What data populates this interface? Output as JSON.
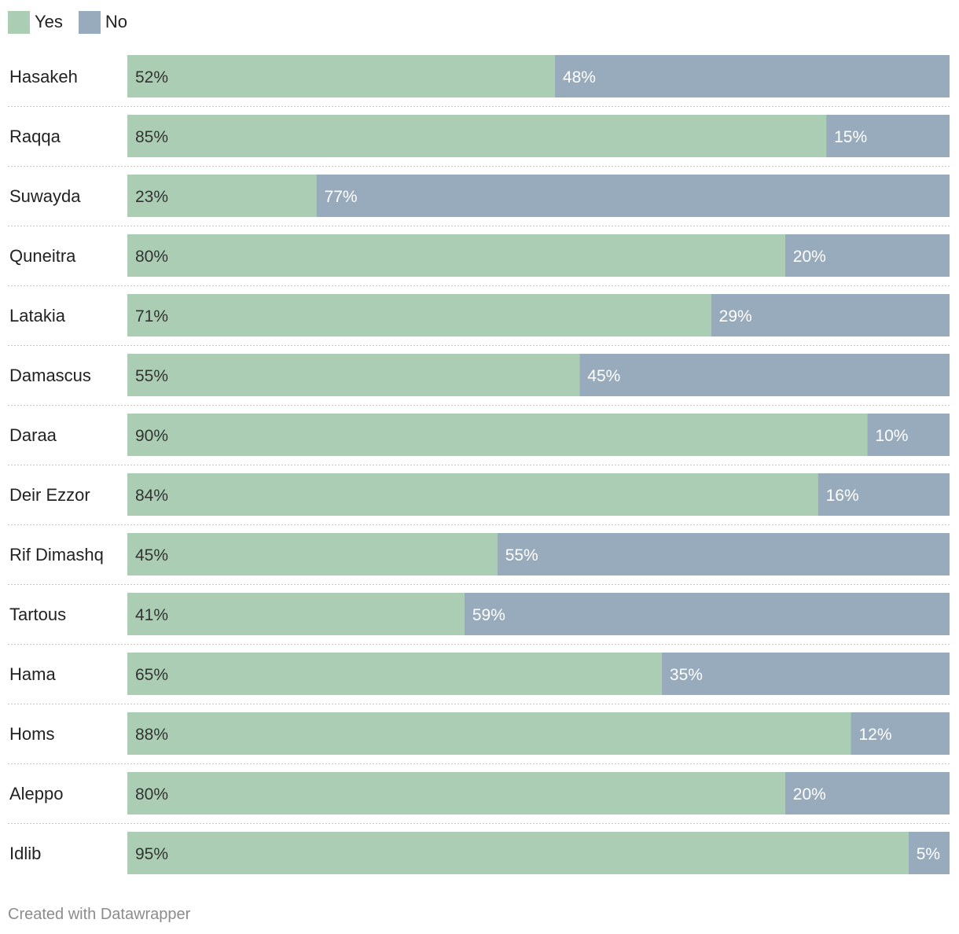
{
  "chart_data": {
    "type": "bar",
    "orientation": "horizontal",
    "stacked": true,
    "normalized": true,
    "legend_position": "top-left",
    "categories": [
      "Hasakeh",
      "Raqqa",
      "Suwayda",
      "Quneitra",
      "Latakia",
      "Damascus",
      "Daraa",
      "Deir Ezzor",
      "Rif Dimashq",
      "Tartous",
      "Hama",
      "Homs",
      "Aleppo",
      "Idlib"
    ],
    "series": [
      {
        "name": "Yes",
        "color": "#abcdb4",
        "values": [
          52,
          85,
          23,
          80,
          71,
          55,
          90,
          84,
          45,
          41,
          65,
          88,
          80,
          95
        ]
      },
      {
        "name": "No",
        "color": "#98abbd",
        "values": [
          48,
          15,
          77,
          20,
          29,
          45,
          10,
          16,
          55,
          59,
          35,
          12,
          20,
          5
        ]
      }
    ],
    "value_suffix": "%",
    "label_colors": {
      "Yes": "#333333",
      "No": "#ffffff"
    }
  },
  "legend": {
    "items": [
      {
        "label": "Yes",
        "color": "#abcdb4"
      },
      {
        "label": "No",
        "color": "#98abbd"
      }
    ]
  },
  "footer": {
    "credit": "Created with Datawrapper"
  }
}
